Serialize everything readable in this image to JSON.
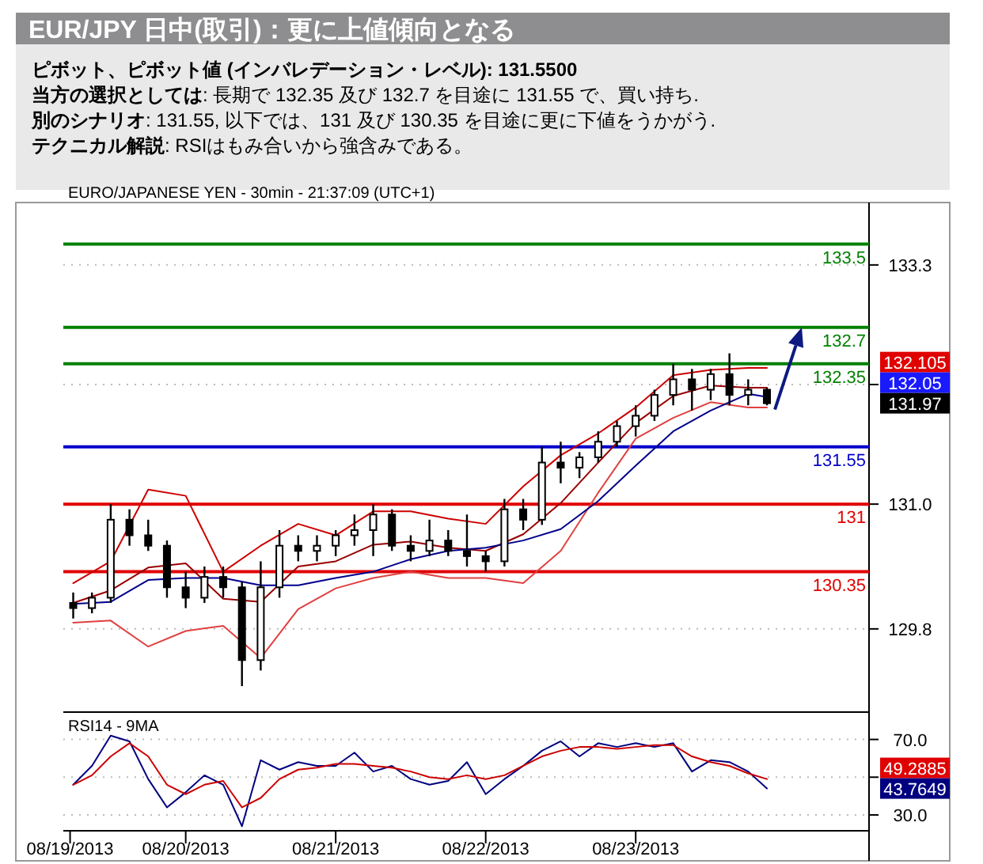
{
  "chart_data": [
    {
      "type": "other",
      "title": "EUR/JPY 日中(取引)：更に上値傾向となる",
      "subtitle": "ピボット、ピボット値 (インバレデーション・レベル): 131.5500",
      "annotations": [
        "**当方の選択としては**: 長期で 132.35 及び 132.7 を目途に 131.55 で、買い持ち.",
        "**別のシナリオ**: 131.55, 以下では、131 及び 130.35 を目途に更に下値をうかがう.",
        "**テクニカル解説**: RSIはもみ合いから強含みである。"
      ]
    },
    {
      "type": "candlestick",
      "title": "EURO/JAPANESE YEN - 30min - 21:37:09 (UTC+1)",
      "x": [
        "2013-08-19T06:00",
        "2013-08-19T09:00",
        "2013-08-19T12:00",
        "2013-08-19T15:00",
        "2013-08-19T18:00",
        "2013-08-19T21:00",
        "2013-08-20T00:00",
        "2013-08-20T03:00",
        "2013-08-20T06:00",
        "2013-08-20T09:00",
        "2013-08-20T12:00",
        "2013-08-20T15:00",
        "2013-08-20T18:00",
        "2013-08-20T21:00",
        "2013-08-21T00:00",
        "2013-08-21T03:00",
        "2013-08-21T06:00",
        "2013-08-21T09:00",
        "2013-08-21T12:00",
        "2013-08-21T15:00",
        "2013-08-21T18:00",
        "2013-08-21T21:00",
        "2013-08-22T00:00",
        "2013-08-22T03:00",
        "2013-08-22T06:00",
        "2013-08-22T09:00",
        "2013-08-22T12:00",
        "2013-08-22T15:00",
        "2013-08-22T18:00",
        "2013-08-22T21:00",
        "2013-08-23T00:00",
        "2013-08-23T03:00",
        "2013-08-23T06:00",
        "2013-08-23T09:00",
        "2013-08-23T12:00",
        "2013-08-23T15:00",
        "2013-08-23T18:00",
        "2013-08-23T21:00"
      ],
      "ohlc": [
        [
          130.05,
          130.15,
          129.9,
          130.0
        ],
        [
          130.0,
          130.15,
          129.95,
          130.1
        ],
        [
          130.1,
          131.0,
          130.05,
          130.85
        ],
        [
          130.85,
          130.95,
          130.6,
          130.7
        ],
        [
          130.7,
          130.85,
          130.55,
          130.6
        ],
        [
          130.6,
          130.65,
          130.1,
          130.2
        ],
        [
          130.2,
          130.35,
          130.0,
          130.1
        ],
        [
          130.1,
          130.4,
          130.05,
          130.3
        ],
        [
          130.3,
          130.4,
          130.1,
          130.2
        ],
        [
          130.2,
          130.25,
          129.25,
          129.5
        ],
        [
          129.5,
          130.45,
          129.4,
          130.2
        ],
        [
          130.2,
          130.75,
          130.1,
          130.6
        ],
        [
          130.6,
          130.7,
          130.45,
          130.55
        ],
        [
          130.55,
          130.7,
          130.45,
          130.6
        ],
        [
          130.6,
          130.75,
          130.5,
          130.7
        ],
        [
          130.7,
          130.9,
          130.6,
          130.75
        ],
        [
          130.75,
          131.0,
          130.5,
          130.9
        ],
        [
          130.9,
          130.95,
          130.55,
          130.6
        ],
        [
          130.6,
          130.7,
          130.45,
          130.55
        ],
        [
          130.55,
          130.85,
          130.5,
          130.65
        ],
        [
          130.65,
          130.75,
          130.5,
          130.55
        ],
        [
          130.55,
          130.9,
          130.4,
          130.5
        ],
        [
          130.5,
          130.55,
          130.35,
          130.45
        ],
        [
          130.45,
          131.05,
          130.4,
          130.95
        ],
        [
          130.95,
          131.05,
          130.75,
          130.85
        ],
        [
          130.85,
          131.55,
          130.8,
          131.4
        ],
        [
          131.4,
          131.6,
          131.2,
          131.35
        ],
        [
          131.35,
          131.5,
          131.25,
          131.45
        ],
        [
          131.45,
          131.7,
          131.4,
          131.6
        ],
        [
          131.6,
          131.8,
          131.55,
          131.75
        ],
        [
          131.75,
          131.95,
          131.65,
          131.85
        ],
        [
          131.85,
          132.1,
          131.8,
          132.05
        ],
        [
          132.05,
          132.35,
          131.95,
          132.2
        ],
        [
          132.2,
          132.3,
          131.9,
          132.1
        ],
        [
          132.1,
          132.3,
          132.0,
          132.25
        ],
        [
          132.25,
          132.45,
          131.95,
          132.05
        ],
        [
          132.05,
          132.2,
          131.95,
          132.1
        ],
        [
          132.1,
          132.12,
          131.95,
          131.97
        ]
      ],
      "series": [
        {
          "type": "line",
          "color": "#cc0000",
          "x": [
            "2013-08-19T06:00",
            "2013-08-19T12:00",
            "2013-08-19T18:00",
            "2013-08-20T00:00",
            "2013-08-20T06:00",
            "2013-08-20T12:00",
            "2013-08-20T18:00",
            "2013-08-21T00:00",
            "2013-08-21T06:00",
            "2013-08-21T12:00",
            "2013-08-21T18:00",
            "2013-08-22T00:00",
            "2013-08-22T06:00",
            "2013-08-22T12:00",
            "2013-08-22T18:00",
            "2013-08-23T00:00",
            "2013-08-23T06:00",
            "2013-08-23T12:00",
            "2013-08-23T18:00",
            "2013-08-23T21:00"
          ],
          "values": [
            130.24,
            130.45,
            131.14,
            131.08,
            130.35,
            130.6,
            130.81,
            130.7,
            130.93,
            130.93,
            130.86,
            130.81,
            131.17,
            131.47,
            131.68,
            131.93,
            132.24,
            132.29,
            132.31,
            132.31
          ]
        },
        {
          "type": "line",
          "color": "#990000",
          "x": [
            "2013-08-19T06:00",
            "2013-08-19T12:00",
            "2013-08-19T18:00",
            "2013-08-20T00:00",
            "2013-08-20T06:00",
            "2013-08-20T12:00",
            "2013-08-20T18:00",
            "2013-08-21T00:00",
            "2013-08-21T06:00",
            "2013-08-21T12:00",
            "2013-08-21T18:00",
            "2013-08-22T00:00",
            "2013-08-22T06:00",
            "2013-08-22T12:00",
            "2013-08-22T18:00",
            "2013-08-23T00:00",
            "2013-08-23T06:00",
            "2013-08-23T12:00",
            "2013-08-23T18:00",
            "2013-08-23T21:00"
          ],
          "values": [
            130.05,
            130.17,
            130.39,
            130.43,
            130.09,
            130.06,
            130.4,
            130.45,
            130.61,
            130.64,
            130.58,
            130.55,
            130.71,
            131.01,
            131.4,
            131.78,
            132.04,
            132.14,
            132.12,
            132.12
          ]
        },
        {
          "type": "line",
          "color": "#e04040",
          "x": [
            "2013-08-19T06:00",
            "2013-08-19T12:00",
            "2013-08-19T18:00",
            "2013-08-20T00:00",
            "2013-08-20T06:00",
            "2013-08-20T12:00",
            "2013-08-20T18:00",
            "2013-08-21T00:00",
            "2013-08-21T06:00",
            "2013-08-21T12:00",
            "2013-08-21T18:00",
            "2013-08-22T00:00",
            "2013-08-22T06:00",
            "2013-08-22T12:00",
            "2013-08-22T18:00",
            "2013-08-23T00:00",
            "2013-08-23T06:00",
            "2013-08-23T12:00",
            "2013-08-23T18:00",
            "2013-08-23T21:00"
          ],
          "values": [
            129.86,
            129.88,
            129.63,
            129.78,
            129.83,
            129.52,
            129.99,
            130.19,
            130.29,
            130.35,
            130.29,
            130.29,
            130.24,
            130.55,
            131.11,
            131.63,
            131.83,
            131.98,
            131.93,
            131.93
          ]
        },
        {
          "type": "line",
          "color": "#00008b",
          "x": [
            "2013-08-19T06:00",
            "2013-08-19T12:00",
            "2013-08-19T18:00",
            "2013-08-20T00:00",
            "2013-08-20T06:00",
            "2013-08-20T12:00",
            "2013-08-20T18:00",
            "2013-08-21T00:00",
            "2013-08-21T06:00",
            "2013-08-21T12:00",
            "2013-08-21T18:00",
            "2013-08-22T00:00",
            "2013-08-22T06:00",
            "2013-08-22T12:00",
            "2013-08-22T18:00",
            "2013-08-23T00:00",
            "2013-08-23T06:00",
            "2013-08-23T12:00",
            "2013-08-23T18:00",
            "2013-08-23T21:00"
          ],
          "values": [
            130.04,
            130.06,
            130.27,
            130.29,
            130.29,
            130.22,
            130.22,
            130.29,
            130.35,
            130.47,
            130.55,
            130.58,
            130.65,
            130.76,
            131.03,
            131.37,
            131.7,
            131.9,
            132.06,
            132.03
          ]
        }
      ],
      "ref_lines": [
        {
          "axis": "y",
          "value": 133.5,
          "label": "133.5",
          "color": "#008000"
        },
        {
          "axis": "y",
          "value": 132.7,
          "label": "132.7",
          "color": "#008000"
        },
        {
          "axis": "y",
          "value": 132.35,
          "label": "132.35",
          "color": "#008000"
        },
        {
          "axis": "y",
          "value": 131.55,
          "label": "131.55",
          "color": "#0000cc"
        },
        {
          "axis": "y",
          "value": 131,
          "label": "131",
          "color": "#e00000"
        },
        {
          "axis": "y",
          "value": 130.35,
          "label": "130.35",
          "color": "#e00000"
        }
      ],
      "annotations": [
        "132.105",
        "132.05",
        "131.97"
      ],
      "xlim": [
        "2013-08-19T04:25",
        "2013-08-24T13:20"
      ],
      "ylim": [
        129.0,
        133.9
      ],
      "yticks": [
        129.8,
        {
          "value": 131,
          "label": "131.0"
        },
        {
          "value": 132.15,
          "label": null
        },
        133.3
      ],
      "grid": "y",
      "tick_labels": "y"
    },
    {
      "type": "line",
      "title": "RSI14 - 9MA",
      "x": [
        "2013-08-19T06:00",
        "2013-08-19T09:00",
        "2013-08-19T12:00",
        "2013-08-19T15:00",
        "2013-08-19T18:00",
        "2013-08-19T21:00",
        "2013-08-20T00:00",
        "2013-08-20T03:00",
        "2013-08-20T06:00",
        "2013-08-20T09:00",
        "2013-08-20T12:00",
        "2013-08-20T15:00",
        "2013-08-20T18:00",
        "2013-08-20T21:00",
        "2013-08-21T00:00",
        "2013-08-21T03:00",
        "2013-08-21T06:00",
        "2013-08-21T09:00",
        "2013-08-21T12:00",
        "2013-08-21T15:00",
        "2013-08-21T18:00",
        "2013-08-21T21:00",
        "2013-08-22T00:00",
        "2013-08-22T03:00",
        "2013-08-22T06:00",
        "2013-08-22T09:00",
        "2013-08-22T12:00",
        "2013-08-22T15:00",
        "2013-08-22T18:00",
        "2013-08-22T21:00",
        "2013-08-23T00:00",
        "2013-08-23T03:00",
        "2013-08-23T06:00",
        "2013-08-23T09:00",
        "2013-08-23T12:00",
        "2013-08-23T15:00",
        "2013-08-23T18:00",
        "2013-08-23T21:00"
      ],
      "series": [
        {
          "color": "#000080",
          "values": [
            46,
            56,
            72,
            69,
            49,
            34,
            42,
            51,
            46,
            24,
            59,
            54,
            58,
            56,
            56,
            63,
            53,
            56,
            49,
            46,
            48,
            58,
            41,
            49,
            56,
            64,
            69,
            61,
            68,
            66,
            68,
            66,
            68,
            53,
            59,
            58,
            53,
            44
          ]
        },
        {
          "color": "#cc0000",
          "values": [
            46,
            51,
            61,
            68,
            61,
            46,
            41,
            46,
            48,
            34,
            39,
            49,
            54,
            55,
            57,
            57,
            56,
            55,
            53,
            50,
            49,
            51,
            49,
            51,
            56,
            61,
            64,
            66,
            66,
            65,
            66,
            67,
            67,
            61,
            58,
            56,
            52,
            49
          ]
        }
      ],
      "annotations": [
        "49.2885",
        "43.7649"
      ],
      "xlim": [
        "2013-08-19T04:25",
        "2013-08-24T13:20"
      ],
      "ylim": [
        21.6,
        84.5
      ],
      "yticks": [
        {
          "value": 30,
          "label": "30.0"
        },
        {
          "value": 50,
          "label": null
        },
        {
          "value": 70,
          "label": "70.0"
        }
      ],
      "xticks": [
        {
          "value": "2013-08-19T05:30",
          "label": "08/19/2013"
        },
        {
          "value": "2013-08-20",
          "label": "08/20/2013"
        },
        {
          "value": "2013-08-21",
          "label": "08/21/2013"
        },
        {
          "value": "2013-08-22",
          "label": "08/22/2013"
        },
        {
          "value": "2013-08-23",
          "label": "08/23/2013"
        }
      ],
      "grid": "y"
    }
  ]
}
